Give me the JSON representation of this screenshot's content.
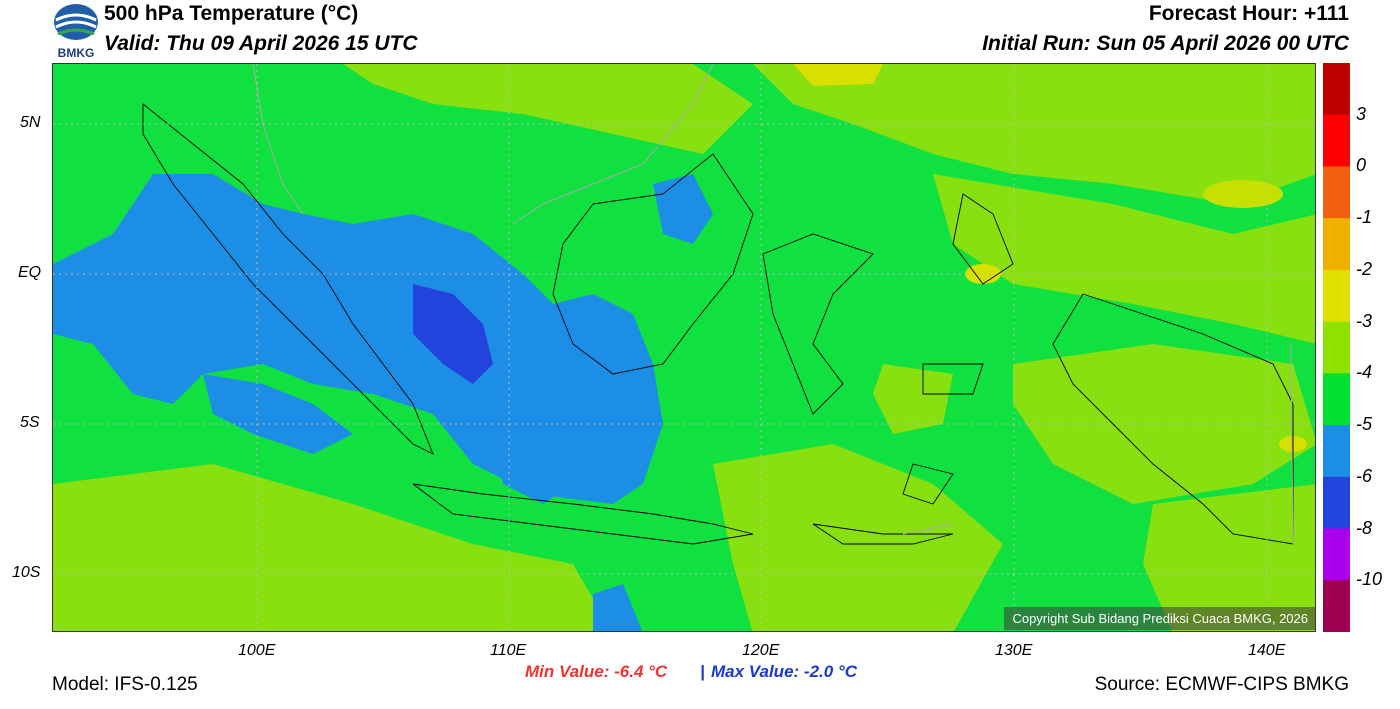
{
  "header": {
    "title": "500 hPa Temperature (°C)",
    "valid": "Valid: Thu 09 April 2026 15 UTC",
    "forecast_hour": "Forecast Hour: +111",
    "initial_run": "Initial Run: Sun 05 April 2026 00 UTC",
    "logo_text": "BMKG"
  },
  "map": {
    "lat_labels": [
      "5N",
      "EQ",
      "5S",
      "10S"
    ],
    "lon_labels": [
      "100E",
      "110E",
      "120E",
      "130E",
      "140E"
    ],
    "copyright": "Copyright Sub Bidang Prediksi Cuaca BMKG, 2026"
  },
  "colorbar": {
    "labels": [
      "3",
      "0",
      "-1",
      "-2",
      "-3",
      "-4",
      "-5",
      "-6",
      "-8",
      "-10"
    ],
    "colors": [
      "#c00000",
      "#ff0000",
      "#f06010",
      "#f0b000",
      "#e0e000",
      "#90e000",
      "#00e030",
      "#1c8ee6",
      "#2244dd",
      "#aa00ee",
      "#a00050"
    ]
  },
  "footer": {
    "model": "Model: IFS-0.125",
    "min_value": "Min Value: -6.4 °C",
    "separator": "|",
    "max_value": "Max Value: -2.0 °C",
    "source": "Source: ECMWF-CIPS BMKG"
  }
}
